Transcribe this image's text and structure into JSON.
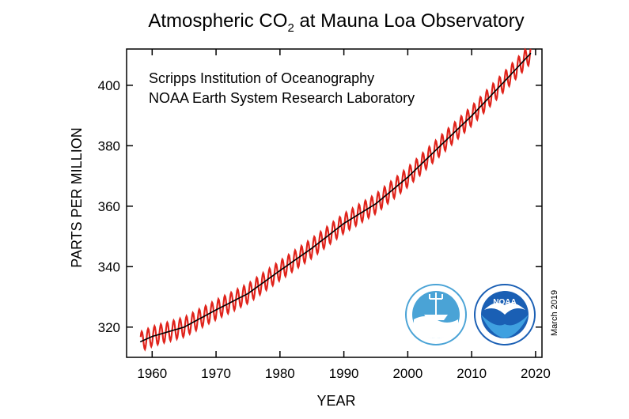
{
  "chart_data": {
    "type": "line",
    "title": "Atmospheric CO₂ at Mauna Loa Observatory",
    "title_parts": {
      "pre": "Atmospheric CO",
      "sub": "2",
      "post": " at Mauna Loa Observatory"
    },
    "xlabel": "YEAR",
    "ylabel": "PARTS PER MILLION",
    "xlim": [
      1956,
      2021
    ],
    "ylim": [
      310,
      412
    ],
    "x_ticks": [
      1960,
      1970,
      1980,
      1990,
      2000,
      2010,
      2020
    ],
    "y_ticks": [
      320,
      340,
      360,
      380,
      400
    ],
    "credits": [
      "Scripps Institution of Oceanography",
      "NOAA Earth System Research Laboratory"
    ],
    "date_stamp": "March 2019",
    "grid": false,
    "logos": [
      "scripps-logo",
      "noaa-logo"
    ],
    "colors": {
      "monthly": "#e0231b",
      "trend": "#000000",
      "noaa_blue": "#1a5fb4",
      "scripps_blue": "#4aa3d6"
    },
    "series": [
      {
        "style": "monthly",
        "seasonal_amplitude_ppm": 3.2,
        "x": [
          1958.2,
          1960,
          1965,
          1970,
          1975,
          1980,
          1985,
          1990,
          1995,
          2000,
          2005,
          2010,
          2015,
          2019.2
        ]
      },
      {
        "style": "trend",
        "x": [
          1958.2,
          1960,
          1965,
          1970,
          1975,
          1980,
          1985,
          1990,
          1995,
          2000,
          2005,
          2010,
          2015,
          2019.2
        ],
        "values": [
          315.2,
          316.9,
          320.0,
          325.7,
          331.1,
          338.7,
          346.1,
          354.3,
          360.8,
          369.6,
          379.8,
          389.9,
          401.0,
          410.5
        ]
      }
    ]
  }
}
